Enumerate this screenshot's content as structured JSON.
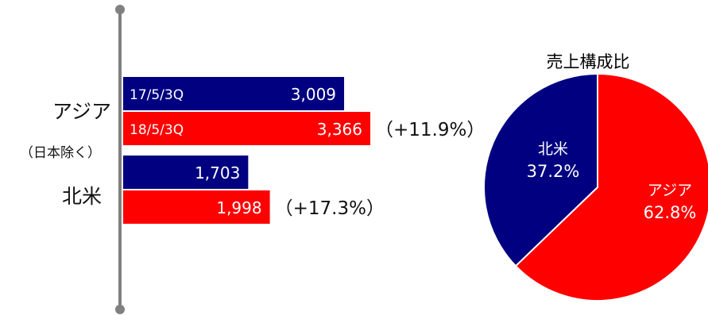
{
  "chart_data": [
    {
      "type": "bar",
      "orientation": "horizontal",
      "categories": [
        "アジア",
        "北米"
      ],
      "category_sublabels": [
        "（日本除く）",
        ""
      ],
      "series": [
        {
          "name": "17/5/3Q",
          "values": [
            3009,
            1703
          ],
          "color": "#000080"
        },
        {
          "name": "18/5/3Q",
          "values": [
            3366,
            1998
          ],
          "color": "#ff0000"
        }
      ],
      "value_labels": [
        [
          "3,009",
          "1,703"
        ],
        [
          "3,366",
          "1,998"
        ]
      ],
      "change_labels": [
        "（+11.9%）",
        "（+17.3%）"
      ],
      "xlim": [
        0,
        4100
      ],
      "grid": false,
      "legend": "none"
    },
    {
      "type": "pie",
      "title": "売上構成比",
      "slices": [
        {
          "label": "アジア",
          "pct_label": "62.8%",
          "value": 62.8,
          "color": "#ff0000"
        },
        {
          "label": "北米",
          "pct_label": "37.2%",
          "value": 37.2,
          "color": "#000080"
        }
      ],
      "start_angle": "12 o'clock",
      "direction": "clockwise"
    }
  ]
}
